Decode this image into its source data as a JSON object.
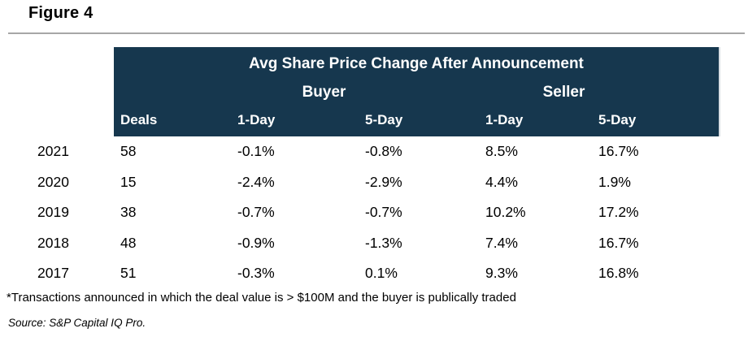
{
  "figure": {
    "label": "Figure 4"
  },
  "chart_data": {
    "type": "table",
    "title": "Avg Share Price Change After Announcement",
    "group_headers": [
      "Buyer",
      "Seller"
    ],
    "columns": [
      "Deals",
      "1-Day",
      "5-Day",
      "1-Day",
      "5-Day"
    ],
    "rows": [
      {
        "year": "2021",
        "deals": "58",
        "buyer_1day": "-0.1%",
        "buyer_5day": "-0.8%",
        "seller_1day": "8.5%",
        "seller_5day": "16.7%"
      },
      {
        "year": "2020",
        "deals": "15",
        "buyer_1day": "-2.4%",
        "buyer_5day": "-2.9%",
        "seller_1day": "4.4%",
        "seller_5day": "1.9%"
      },
      {
        "year": "2019",
        "deals": "38",
        "buyer_1day": "-0.7%",
        "buyer_5day": "-0.7%",
        "seller_1day": "10.2%",
        "seller_5day": "17.2%"
      },
      {
        "year": "2018",
        "deals": "48",
        "buyer_1day": "-0.9%",
        "buyer_5day": "-1.3%",
        "seller_1day": "7.4%",
        "seller_5day": "16.7%"
      },
      {
        "year": "2017",
        "deals": "51",
        "buyer_1day": "-0.3%",
        "buyer_5day": "0.1%",
        "seller_1day": "9.3%",
        "seller_5day": "16.8%"
      }
    ]
  },
  "footnote": "*Transactions announced in which the deal value is > $100M and the buyer is publically traded",
  "source": "Source: S&P Capital IQ Pro.",
  "colors": {
    "header_bg": "#16374E",
    "header_text": "#FFFFFF",
    "body_text": "#000000",
    "rule": "#A6A6A6"
  }
}
